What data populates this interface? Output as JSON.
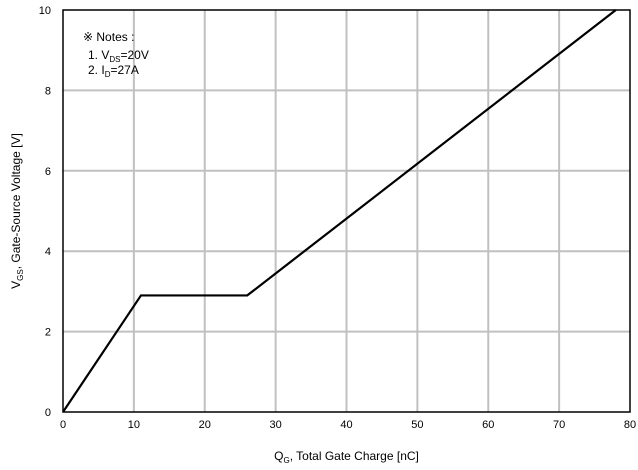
{
  "chart_data": {
    "type": "line",
    "title": "",
    "xlabel": {
      "main": "Q",
      "sub": "G",
      "rest": ", Total Gate Charge [nC]"
    },
    "ylabel": {
      "main": "V",
      "sub": "GS",
      "rest": ", Gate-Source Voltage [V]"
    },
    "xlim": [
      0,
      80
    ],
    "ylim": [
      0,
      10
    ],
    "xticks": [
      0,
      10,
      20,
      30,
      40,
      50,
      60,
      70,
      80
    ],
    "yticks": [
      0,
      2,
      4,
      6,
      8,
      10
    ],
    "grid": true,
    "series": [
      {
        "x": [
          0,
          11,
          26,
          78
        ],
        "y": [
          0,
          2.9,
          2.9,
          10
        ]
      }
    ],
    "notes": {
      "title": "※ Notes :",
      "items": [
        {
          "prefix": "1. V",
          "sub": "DS",
          "suffix": "=20V"
        },
        {
          "prefix": "2. I",
          "sub": "D",
          "suffix": "=27A"
        }
      ]
    }
  },
  "colors": {
    "grid": "#c0c0c0",
    "line": "#000000",
    "frame": "#000000"
  }
}
